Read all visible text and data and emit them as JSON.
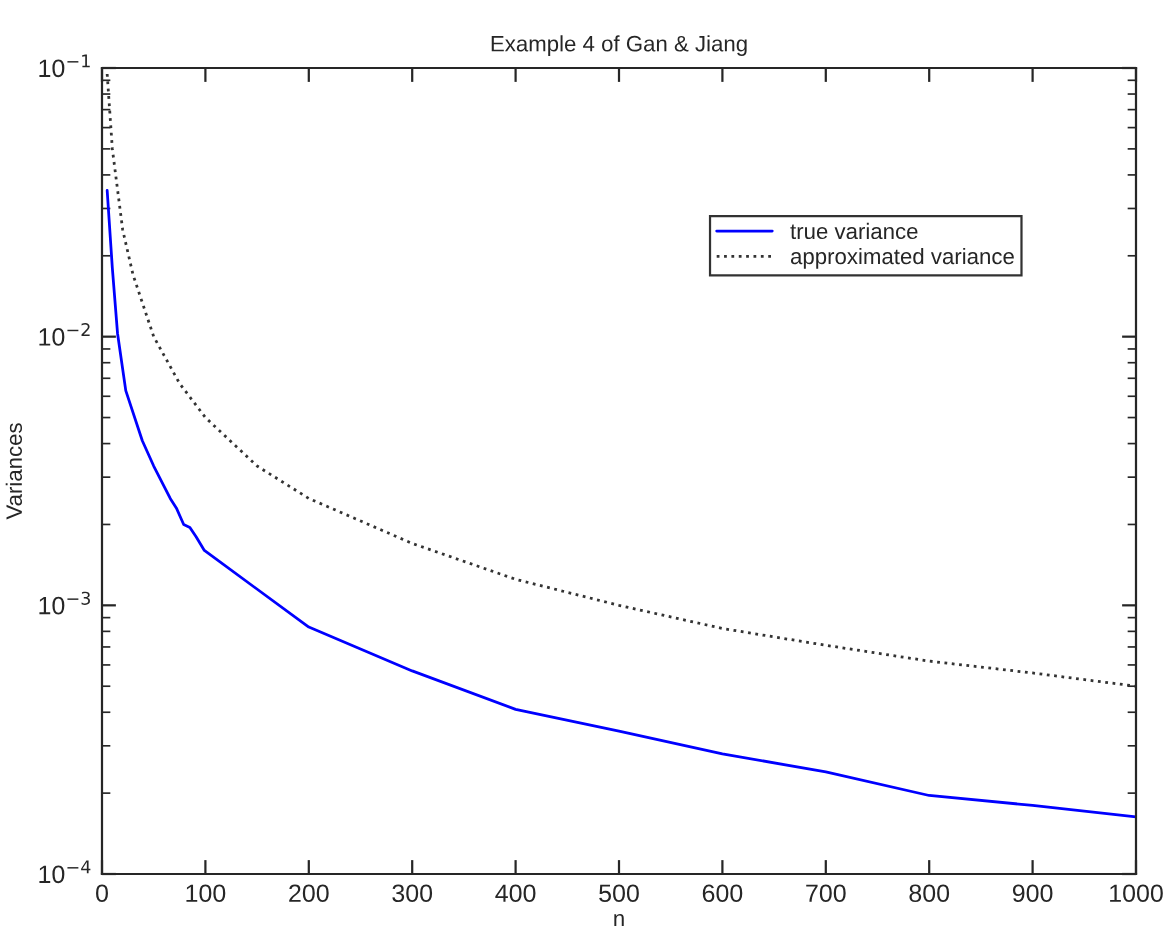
{
  "chart_data": {
    "type": "line",
    "title": "Example 4 of Gan & Jiang",
    "xlabel": "n",
    "ylabel": "Variances",
    "log": "y",
    "grid": false,
    "legend": "top right",
    "xlim": [
      0,
      1000
    ],
    "xticks": [
      0,
      100,
      200,
      300,
      400,
      500,
      600,
      700,
      800,
      900,
      1000
    ],
    "ylim": [
      0.0001,
      0.1
    ],
    "yticks": [
      {
        "value": 0.0001,
        "label": "10$^{−4}$"
      },
      {
        "value": 0.001,
        "label": "10$^{−3}$"
      },
      {
        "value": 0.01,
        "label": "10$^{−2}$"
      },
      {
        "value": 0.1,
        "label": "10$^{−1}$"
      }
    ],
    "series": [
      {
        "name": "true variance",
        "color": "#0000ff",
        "line_style": "solid",
        "x": [
          5,
          10,
          15,
          23,
          39,
          50,
          66,
          72,
          79,
          85,
          91,
          99,
          200,
          300,
          400,
          500,
          600,
          700,
          800,
          900,
          1000
        ],
        "values": [
          0.035,
          0.018,
          0.0103,
          0.0063,
          0.0041,
          0.0033,
          0.0025,
          0.0023,
          0.002,
          0.00195,
          0.0018,
          0.0016,
          0.00083,
          0.00057,
          0.00041,
          0.00034,
          0.00028,
          0.00024,
          0.000196,
          0.00018,
          0.000163
        ]
      },
      {
        "name": "approximated variance",
        "color": "#333333",
        "line_style": "dotted",
        "x": [
          5,
          10,
          20,
          30,
          50,
          75,
          100,
          150,
          200,
          300,
          400,
          500,
          600,
          700,
          800,
          900,
          1000
        ],
        "values": [
          0.095,
          0.05,
          0.025,
          0.017,
          0.01,
          0.0067,
          0.005,
          0.0033,
          0.0025,
          0.0017,
          0.00125,
          0.001,
          0.00082,
          0.00071,
          0.00062,
          0.00056,
          0.0005
        ]
      }
    ]
  }
}
